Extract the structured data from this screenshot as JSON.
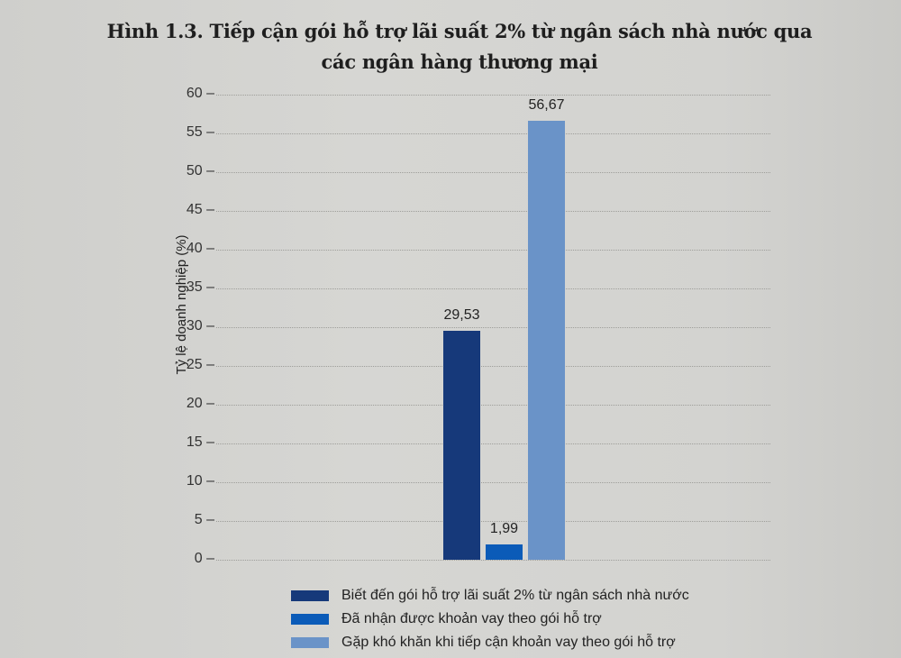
{
  "chart_data": {
    "type": "bar",
    "title": "Hình 1.3. Tiếp cận gói hỗ trợ lãi suất 2% từ ngân sách nhà nước qua các ngân hàng thương mại",
    "title_lines": [
      "Hình 1.3. Tiếp cận gói hỗ trợ lãi suất 2% từ ngân sách nhà nước qua",
      "các ngân hàng thương mại"
    ],
    "xlabel": "",
    "ylabel": "Tỷ lệ doanh nghiệp (%)",
    "ylim": [
      0,
      60
    ],
    "yticks": [
      "0",
      "5",
      "10",
      "15",
      "20",
      "25",
      "30",
      "35",
      "40",
      "45",
      "50",
      "55",
      "60"
    ],
    "grid": true,
    "legend_position": "bottom",
    "categories": [
      ""
    ],
    "series": [
      {
        "name": "Biết đến gói hỗ trợ lãi suất 2% từ ngân sách nhà nước",
        "values": [
          29.53
        ],
        "label": "29,53",
        "color": "#16397a"
      },
      {
        "name": "Đã nhận được khoản vay theo gói hỗ trợ",
        "values": [
          1.99
        ],
        "label": "1,99",
        "color": "#0b5bb8"
      },
      {
        "name": "Gặp khó khăn khi tiếp cận khoản vay theo gói hỗ trợ",
        "values": [
          56.67
        ],
        "label": "56,67",
        "color": "#6a93c8"
      }
    ]
  }
}
